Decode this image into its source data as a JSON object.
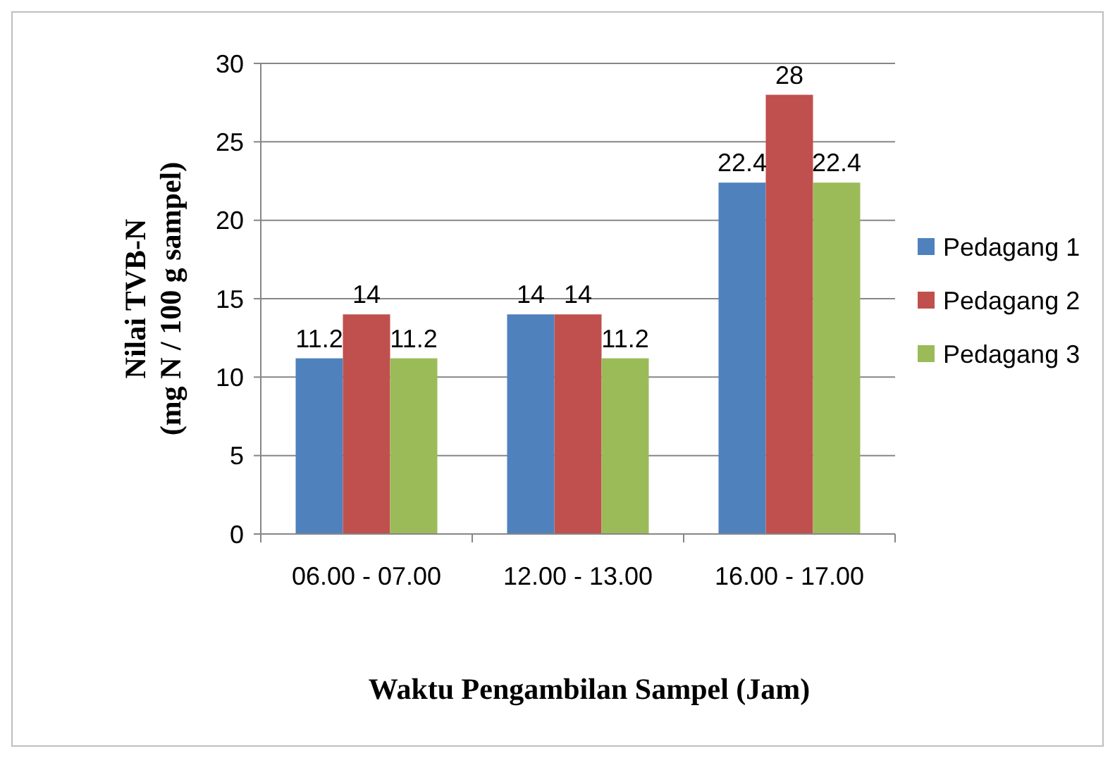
{
  "chart_data": {
    "type": "bar",
    "xlabel": "Waktu Pengambilan Sampel (Jam)",
    "ylabel": "Nilai TVB-N\n(mg N / 100 g sampel)",
    "categories": [
      "06.00 - 07.00",
      "12.00 - 13.00",
      "16.00 - 17.00"
    ],
    "series": [
      {
        "name": "Pedagang 1",
        "color": "#4f81bd",
        "values": [
          11.2,
          14,
          22.4
        ]
      },
      {
        "name": "Pedagang 2",
        "color": "#c0504d",
        "values": [
          14,
          14,
          28
        ]
      },
      {
        "name": "Pedagang 3",
        "color": "#9bbb59",
        "values": [
          11.2,
          11.2,
          22.4
        ]
      }
    ],
    "ylim": [
      0,
      30
    ],
    "yticks": [
      0,
      5,
      10,
      15,
      20,
      25,
      30
    ],
    "grid": "y",
    "legend": "right",
    "data_labels": true
  }
}
